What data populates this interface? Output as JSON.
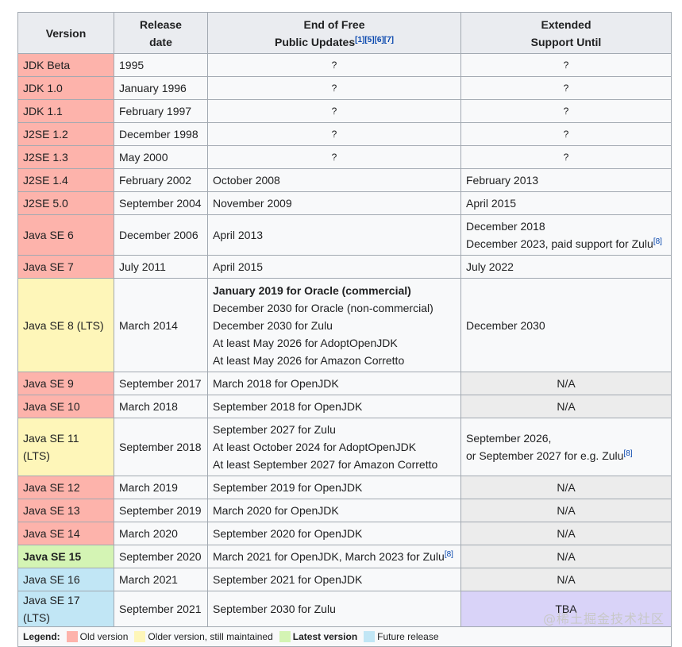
{
  "headers": {
    "version": "Version",
    "release_line1": "Release",
    "release_line2": "date",
    "eol_line1": "End of Free",
    "eol_line2": "Public Updates",
    "eol_refs": "[1][5][6][7]",
    "ext_line1": "Extended",
    "ext_line2": "Support Until"
  },
  "rows": [
    {
      "version": "JDK Beta",
      "status": "old",
      "release": "1995",
      "eol": [
        "?"
      ],
      "ext": [
        "?"
      ],
      "eol_style": "q",
      "ext_style": "q"
    },
    {
      "version": "JDK 1.0",
      "status": "old",
      "release": "January 1996",
      "eol": [
        "?"
      ],
      "ext": [
        "?"
      ],
      "eol_style": "q",
      "ext_style": "q"
    },
    {
      "version": "JDK 1.1",
      "status": "old",
      "release": "February 1997",
      "eol": [
        "?"
      ],
      "ext": [
        "?"
      ],
      "eol_style": "q",
      "ext_style": "q"
    },
    {
      "version": "J2SE 1.2",
      "status": "old",
      "release": "December 1998",
      "eol": [
        "?"
      ],
      "ext": [
        "?"
      ],
      "eol_style": "q",
      "ext_style": "q"
    },
    {
      "version": "J2SE 1.3",
      "status": "old",
      "release": "May 2000",
      "eol": [
        "?"
      ],
      "ext": [
        "?"
      ],
      "eol_style": "q",
      "ext_style": "q"
    },
    {
      "version": "J2SE 1.4",
      "status": "old",
      "release": "February 2002",
      "eol": [
        "October 2008"
      ],
      "ext": [
        "February 2013"
      ]
    },
    {
      "version": "J2SE 5.0",
      "status": "old",
      "release": "September 2004",
      "eol": [
        "November 2009"
      ],
      "ext": [
        "April 2015"
      ]
    },
    {
      "version": "Java SE 6",
      "status": "old",
      "release": "December 2006",
      "eol": [
        "April 2013"
      ],
      "ext": [
        "December 2018",
        "December 2023, paid support for Zulu"
      ],
      "ext_ref": "[8]"
    },
    {
      "version": "Java SE 7",
      "status": "old",
      "release": "July 2011",
      "eol": [
        "April 2015"
      ],
      "ext": [
        "July 2022"
      ]
    },
    {
      "version": "Java SE 8 (LTS)",
      "status": "maint",
      "release": "March 2014",
      "eol_bold": "January 2019 for Oracle (commercial)",
      "eol": [
        "December 2030 for Oracle (non-commercial)",
        "December 2030 for Zulu",
        "At least May 2026 for AdoptOpenJDK",
        "At least May 2026 for Amazon Corretto"
      ],
      "ext": [
        "December 2030"
      ]
    },
    {
      "version": "Java SE 9",
      "status": "old",
      "release": "September 2017",
      "eol": [
        "March 2018 for OpenJDK"
      ],
      "ext": [
        "N/A"
      ],
      "ext_style": "na"
    },
    {
      "version": "Java SE 10",
      "status": "old",
      "release": "March 2018",
      "eol": [
        "September 2018 for OpenJDK"
      ],
      "ext": [
        "N/A"
      ],
      "ext_style": "na"
    },
    {
      "version": "Java SE 11 (LTS)",
      "status": "maint",
      "release": "September 2018",
      "eol": [
        "September 2027 for Zulu",
        "At least October 2024 for AdoptOpenJDK",
        "At least September 2027 for Amazon Corretto"
      ],
      "ext": [
        "September 2026,",
        "or September 2027 for e.g. Zulu"
      ],
      "ext_ref": "[8]"
    },
    {
      "version": "Java SE 12",
      "status": "old",
      "release": "March 2019",
      "eol": [
        "September 2019 for OpenJDK"
      ],
      "ext": [
        "N/A"
      ],
      "ext_style": "na"
    },
    {
      "version": "Java SE 13",
      "status": "old",
      "release": "September 2019",
      "eol": [
        "March 2020 for OpenJDK"
      ],
      "ext": [
        "N/A"
      ],
      "ext_style": "na"
    },
    {
      "version": "Java SE 14",
      "status": "old",
      "release": "March 2020",
      "eol": [
        "September 2020 for OpenJDK"
      ],
      "ext": [
        "N/A"
      ],
      "ext_style": "na"
    },
    {
      "version": "Java SE 15",
      "status": "latest",
      "release": "September 2020",
      "eol": [
        "March 2021 for OpenJDK, March 2023 for Zulu"
      ],
      "eol_ref": "[8]",
      "ext": [
        "N/A"
      ],
      "ext_style": "na"
    },
    {
      "version": "Java SE 16",
      "status": "future",
      "release": "March 2021",
      "eol": [
        "September 2021 for OpenJDK"
      ],
      "ext": [
        "N/A"
      ],
      "ext_style": "na"
    },
    {
      "version": "Java SE 17 (LTS)",
      "status": "future",
      "release": "September 2021",
      "eol": [
        "September 2030 for Zulu"
      ],
      "ext": [
        "TBA"
      ],
      "ext_style": "tba"
    }
  ],
  "legend": {
    "label": "Legend:",
    "items": [
      {
        "text": "Old version",
        "color": "#fdb3ab",
        "bold": false
      },
      {
        "text": "Older version, still maintained",
        "color": "#fef6b9",
        "bold": false
      },
      {
        "text": "Latest version",
        "color": "#d4f4b4",
        "bold": true
      },
      {
        "text": "Future release",
        "color": "#c1e6f5",
        "bold": false
      }
    ]
  },
  "watermark": "@稀土掘金技术社区"
}
